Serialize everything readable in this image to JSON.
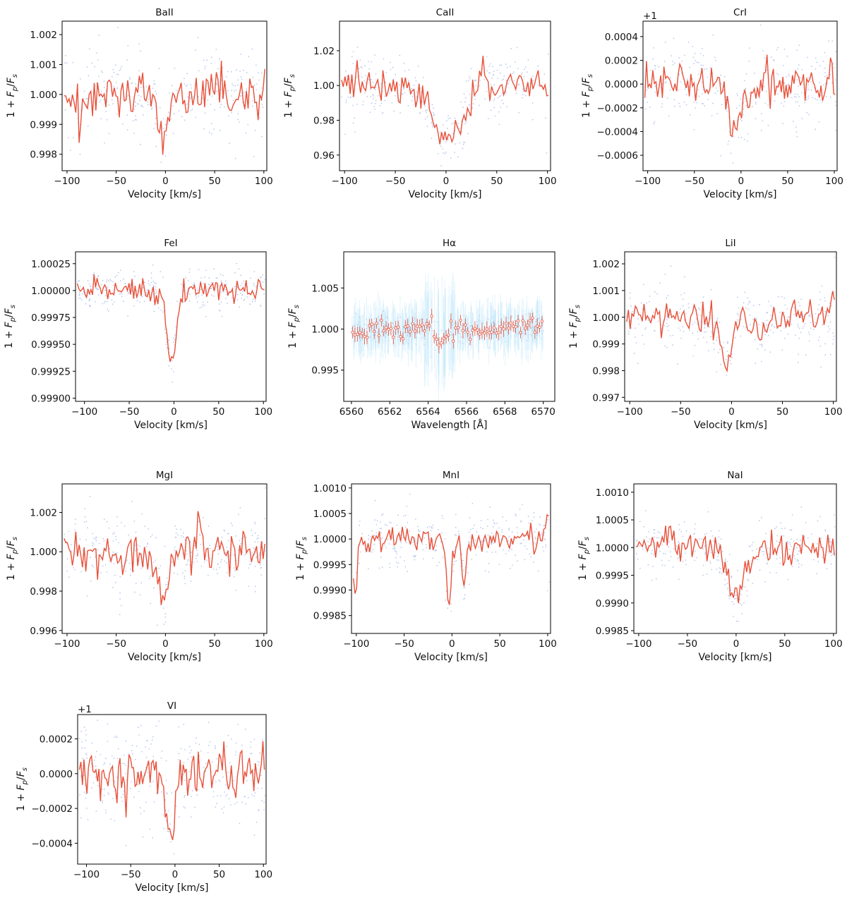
{
  "figure": {
    "ylabel": "1 + F_p/F_s",
    "velocity_xlabel": "Velocity [km/s]",
    "wavelength_xlabel": "Wavelength [Å]"
  },
  "colors": {
    "line": "#e8513a",
    "dots": "#b9c9ec",
    "errorbar": "#bfe7fb"
  },
  "chart_data": [
    {
      "name": "BaII",
      "type": "line",
      "title": "BaII",
      "xlabel": "Velocity [km/s]",
      "ylabel": "1 + Fp/Fs",
      "xlim": [
        -105,
        103
      ],
      "ylim": [
        0.99745,
        1.00245
      ],
      "xticks": [
        -100,
        -50,
        0,
        50,
        100
      ],
      "xtick_labels": [
        "−100",
        "−50",
        "0",
        "50",
        "100"
      ],
      "yticks": [
        0.998,
        0.999,
        1.0,
        1.001,
        1.002
      ],
      "ytick_labels": [
        "0.998",
        "0.999",
        "1.000",
        "1.001",
        "1.002"
      ],
      "offset": "",
      "x_range": [
        -103,
        102
      ],
      "base": 1.0,
      "noise": 0.00055,
      "noise_std": 0.00045,
      "seed": 1,
      "features": [
        {
          "center": -2,
          "depth": 0.0017,
          "width": 4
        },
        {
          "center": -33,
          "depth": 0.0005,
          "width": 3
        },
        {
          "center": -88,
          "depth": 0.0007,
          "width": 3
        }
      ],
      "emission": [
        {
          "center": 43,
          "height": 0.0007,
          "width": 2
        }
      ]
    },
    {
      "name": "CaII",
      "type": "line",
      "title": "CaII",
      "xlabel": "Velocity [km/s]",
      "ylabel": "1 + Fp/Fs",
      "xlim": [
        -105,
        103
      ],
      "ylim": [
        0.951,
        1.037
      ],
      "xticks": [
        -100,
        -50,
        0,
        50,
        100
      ],
      "xtick_labels": [
        "−100",
        "−50",
        "0",
        "50",
        "100"
      ],
      "yticks": [
        0.96,
        0.98,
        1.0,
        1.02
      ],
      "ytick_labels": [
        "0.96",
        "0.98",
        "1.00",
        "1.02"
      ],
      "offset": "",
      "x_range": [
        -103,
        102
      ],
      "base": 1.0,
      "noise": 0.006,
      "noise_std": 0.006,
      "seed": 2,
      "features": [
        {
          "center": 2,
          "depth": 0.032,
          "width": 14
        }
      ],
      "emission": [
        {
          "center": 35,
          "height": 0.012,
          "width": 2
        }
      ]
    },
    {
      "name": "CrI",
      "type": "line",
      "title": "CrI",
      "xlabel": "Velocity [km/s]",
      "ylabel": "1 + Fp/Fs",
      "xlim": [
        -105,
        103
      ],
      "ylim": [
        -0.00073,
        0.00053
      ],
      "xticks": [
        -100,
        -50,
        0,
        50,
        100
      ],
      "xtick_labels": [
        "−100",
        "−50",
        "0",
        "50",
        "100"
      ],
      "yticks": [
        -0.0006,
        -0.0004,
        -0.0002,
        0.0,
        0.0002,
        0.0004
      ],
      "ytick_labels": [
        "−0.0006",
        "−0.0004",
        "−0.0002",
        "0.0000",
        "0.0002",
        "0.0004"
      ],
      "offset": "+1",
      "x_range": [
        -103,
        102
      ],
      "base": 0.0,
      "noise": 0.00012,
      "noise_std": 0.00012,
      "seed": 3,
      "features": [
        {
          "center": -8,
          "depth": 0.00045,
          "width": 6
        },
        {
          "center": 10,
          "depth": 0.00012,
          "width": 8
        }
      ],
      "emission": [
        {
          "center": 60,
          "height": 0.00015,
          "width": 2
        }
      ]
    },
    {
      "name": "FeI",
      "type": "line",
      "title": "FeI",
      "xlabel": "Velocity [km/s]",
      "ylabel": "1 + Fp/Fs",
      "xlim": [
        -110,
        103
      ],
      "ylim": [
        0.99897,
        1.00036
      ],
      "xticks": [
        -100,
        -50,
        0,
        50,
        100
      ],
      "xtick_labels": [
        "−100",
        "−50",
        "0",
        "50",
        "100"
      ],
      "yticks": [
        0.999,
        0.99925,
        0.9995,
        0.99975,
        1.0,
        1.00025
      ],
      "ytick_labels": [
        "0.99900",
        "0.99925",
        "0.99950",
        "0.99975",
        "1.00000",
        "1.00025"
      ],
      "offset": "",
      "x_range": [
        -108,
        102
      ],
      "base": 1.0,
      "noise": 7e-05,
      "noise_std": 6e-05,
      "seed": 4,
      "features": [
        {
          "center": -3,
          "depth": 0.00065,
          "width": 5
        }
      ],
      "emission": [
        {
          "center": -88,
          "height": 8e-05,
          "width": 2
        }
      ]
    },
    {
      "name": "Halpha",
      "type": "scatter",
      "title": "Hα",
      "xlabel": "Wavelength [Å]",
      "ylabel": "1 + Fp/Fs",
      "xlim": [
        6559.6,
        6570.6
      ],
      "ylim": [
        0.9912,
        1.0094
      ],
      "xticks": [
        6560,
        6562,
        6564,
        6566,
        6568,
        6570
      ],
      "xtick_labels": [
        "6560",
        "6562",
        "6564",
        "6566",
        "6568",
        "6570"
      ],
      "yticks": [
        0.995,
        1.0,
        1.005
      ],
      "ytick_labels": [
        "0.995",
        "1.000",
        "1.005"
      ],
      "offset": "",
      "x_range": [
        6560,
        6570
      ],
      "n_binned": 80,
      "base": 1.0,
      "noise": 0.0006,
      "err": 0.0022,
      "seed": 5,
      "features": [
        {
          "center": 6564.7,
          "depth": 0.0015,
          "width": 0.25
        }
      ]
    },
    {
      "name": "LiI",
      "type": "line",
      "title": "LiI",
      "xlabel": "Velocity [km/s]",
      "ylabel": "1 + Fp/Fs",
      "xlim": [
        -105,
        103
      ],
      "ylim": [
        0.99685,
        1.00245
      ],
      "xticks": [
        -100,
        -50,
        0,
        50,
        100
      ],
      "xtick_labels": [
        "−100",
        "−50",
        "0",
        "50",
        "100"
      ],
      "yticks": [
        0.997,
        0.998,
        0.999,
        1.0,
        1.001,
        1.002
      ],
      "ytick_labels": [
        "0.997",
        "0.998",
        "0.999",
        "1.000",
        "1.001",
        "1.002"
      ],
      "offset": "",
      "x_range": [
        -103,
        102
      ],
      "base": 1.0,
      "noise": 0.0004,
      "noise_std": 0.0004,
      "seed": 6,
      "features": [
        {
          "center": -5,
          "depth": 0.0015,
          "width": 6
        },
        {
          "center": 30,
          "depth": 0.0006,
          "width": 6
        }
      ],
      "emission": [
        {
          "center": 100,
          "height": 0.0012,
          "width": 2
        }
      ]
    },
    {
      "name": "MgI",
      "type": "line",
      "title": "MgI",
      "xlabel": "Velocity [km/s]",
      "ylabel": "1 + Fp/Fs",
      "xlim": [
        -105,
        103
      ],
      "ylim": [
        0.99585,
        1.00345
      ],
      "xticks": [
        -100,
        -50,
        0,
        50,
        100
      ],
      "xtick_labels": [
        "−100",
        "−50",
        "0",
        "50",
        "100"
      ],
      "yticks": [
        0.996,
        0.998,
        1.0,
        1.002
      ],
      "ytick_labels": [
        "0.996",
        "0.998",
        "1.000",
        "1.002"
      ],
      "offset": "",
      "x_range": [
        -103,
        102
      ],
      "base": 1.0,
      "noise": 0.0007,
      "noise_std": 0.0006,
      "seed": 7,
      "features": [
        {
          "center": -2,
          "depth": 0.0025,
          "width": 5
        },
        {
          "center": -46,
          "depth": 0.0012,
          "width": 2
        }
      ],
      "emission": [
        {
          "center": 35,
          "height": 0.0012,
          "width": 2
        }
      ]
    },
    {
      "name": "MnI",
      "type": "line",
      "title": "MnI",
      "xlabel": "Velocity [km/s]",
      "ylabel": "1 + Fp/Fs",
      "xlim": [
        -105,
        103
      ],
      "ylim": [
        0.99815,
        1.00108
      ],
      "xticks": [
        -100,
        -50,
        0,
        50,
        100
      ],
      "xtick_labels": [
        "−100",
        "−50",
        "0",
        "50",
        "100"
      ],
      "yticks": [
        0.9985,
        0.999,
        0.9995,
        1.0,
        1.0005,
        1.001
      ],
      "ytick_labels": [
        "0.9985",
        "0.9990",
        "0.9995",
        "1.0000",
        "1.0005",
        "1.0010"
      ],
      "offset": "",
      "x_range": [
        -103,
        102
      ],
      "base": 1.0,
      "noise": 0.00018,
      "noise_std": 0.00018,
      "seed": 8,
      "features": [
        {
          "center": -3,
          "depth": 0.0013,
          "width": 3
        },
        {
          "center": 13,
          "depth": 0.0009,
          "width": 2
        },
        {
          "center": -101,
          "depth": 0.0009,
          "width": 2
        }
      ],
      "emission": [
        {
          "center": 100,
          "height": 0.0004,
          "width": 2
        }
      ]
    },
    {
      "name": "NaI",
      "type": "line",
      "title": "NaI",
      "xlabel": "Velocity [km/s]",
      "ylabel": "1 + Fp/Fs",
      "xlim": [
        -105,
        103
      ],
      "ylim": [
        0.99845,
        1.00115
      ],
      "xticks": [
        -100,
        -50,
        0,
        50,
        100
      ],
      "xtick_labels": [
        "−100",
        "−50",
        "0",
        "50",
        "100"
      ],
      "yticks": [
        0.9985,
        0.999,
        0.9995,
        1.0,
        1.0005,
        1.001
      ],
      "ytick_labels": [
        "0.9985",
        "0.9990",
        "0.9995",
        "1.0000",
        "1.0005",
        "1.0010"
      ],
      "offset": "",
      "x_range": [
        -103,
        102
      ],
      "base": 1.0,
      "noise": 0.00018,
      "noise_std": 0.00016,
      "seed": 9,
      "features": [
        {
          "center": 0,
          "depth": 0.0009,
          "width": 9
        }
      ],
      "emission": [
        {
          "center": -70,
          "height": 0.0004,
          "width": 3
        }
      ]
    },
    {
      "name": "VI",
      "type": "line",
      "title": "VI",
      "xlabel": "Velocity [km/s]",
      "ylabel": "1 + Fp/Fs",
      "xlim": [
        -110,
        103
      ],
      "ylim": [
        -0.00052,
        0.00034
      ],
      "xticks": [
        -100,
        -50,
        0,
        50,
        100
      ],
      "xtick_labels": [
        "−100",
        "−50",
        "0",
        "50",
        "100"
      ],
      "yticks": [
        -0.0004,
        -0.0002,
        0.0,
        0.0002
      ],
      "ytick_labels": [
        "−0.0004",
        "−0.0002",
        "0.0000",
        "0.0002"
      ],
      "offset": "+1",
      "x_range": [
        -108,
        102
      ],
      "base": 0.0,
      "noise": 9e-05,
      "noise_std": 0.0001,
      "seed": 10,
      "features": [
        {
          "center": -5,
          "depth": 0.00037,
          "width": 5
        }
      ],
      "emission": [
        {
          "center": 55,
          "height": 0.00012,
          "width": 2
        }
      ]
    }
  ]
}
